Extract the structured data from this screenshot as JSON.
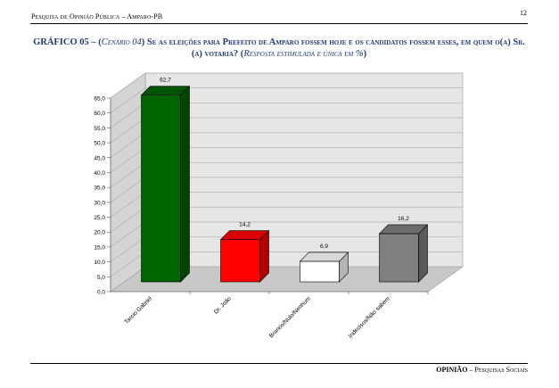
{
  "header": {
    "left": "Pesquisa de Opinião Pública – Amparo-PB",
    "page_number": "12"
  },
  "title": {
    "prefix": "GRÁFICO 05 – (",
    "scenario": "Cenário 04",
    "question": ") Se as eleições para Prefeito de Amparo fossem hoje e os candidatos fossem esses, em quem o(a) Sr.(a) votaria? (",
    "note": "Resposta estimulada e única em %",
    "suffix": ")"
  },
  "footer": {
    "brand": "OPINIÃO",
    "rest": " – Pesquisas Sociais"
  },
  "chart_data": {
    "type": "bar",
    "categories": [
      "Tarcio Gabriel",
      "Dr. João",
      "Branco/Nulo/Nenhum",
      "Indecisos/Não sabem"
    ],
    "values": [
      62.7,
      14.2,
      6.9,
      16.2
    ],
    "value_labels": [
      "62,7",
      "14,2",
      "6,9",
      "16,2"
    ],
    "colors": [
      "#006400",
      "#ff0000",
      "#ffffff",
      "#7f7f7f"
    ],
    "ylim": [
      0,
      65
    ],
    "yticks": [
      "0,0",
      "5,0",
      "10,0",
      "15,0",
      "20,0",
      "25,0",
      "30,0",
      "35,0",
      "40,0",
      "45,0",
      "50,0",
      "55,0",
      "60,0",
      "65,0"
    ],
    "grid": true,
    "style": "3d"
  }
}
